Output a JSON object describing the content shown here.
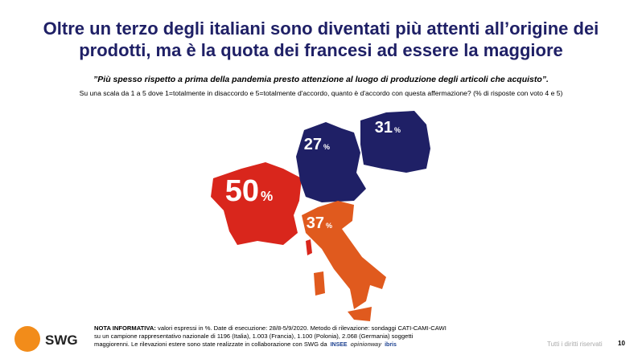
{
  "chart_data": {
    "type": "map",
    "title": "Oltre un terzo degli italiani sono diventati più attenti all’origine dei prodotti, ma è la quota dei francesi ad essere la maggiore",
    "subtitle": "”Più spesso rispetto a prima della pandemia presto attenzione al luogo di produzione degli articoli che acquisto”.",
    "question": "Su una scala da 1 a 5 dove 1=totalmente in disaccordo e 5=totalmente d'accordo, quanto è d'accordo con questa affermazione? (% di risposte con voto 4 e 5)",
    "unit": "%",
    "values": [
      50,
      27,
      31,
      37
    ],
    "colors": [
      "#d9261c",
      "#1f2066",
      "#1f2066",
      "#e05a1e"
    ]
  },
  "footer": {
    "brand": "SWG",
    "note_label": "NOTA INFORMATIVA:",
    "note": "valori espressi in %. Date di esecuzione: 28/8-5/9/2020. Metodo di rilevazione: sondaggi CATI-CAMI-CAWI su un campione rappresentativo nazionale di 1196 (Italia), 1.003 (Francia), 1.100 (Polonia), 2.068 (Germania) soggetti maggiorenni. Le rilevazioni estere sono state realizzate in collaborazione con SWG da",
    "logos": [
      "INSEE",
      "opinionway",
      "ibris"
    ],
    "rights": "Tutti i diritti riservati",
    "page": "10"
  }
}
